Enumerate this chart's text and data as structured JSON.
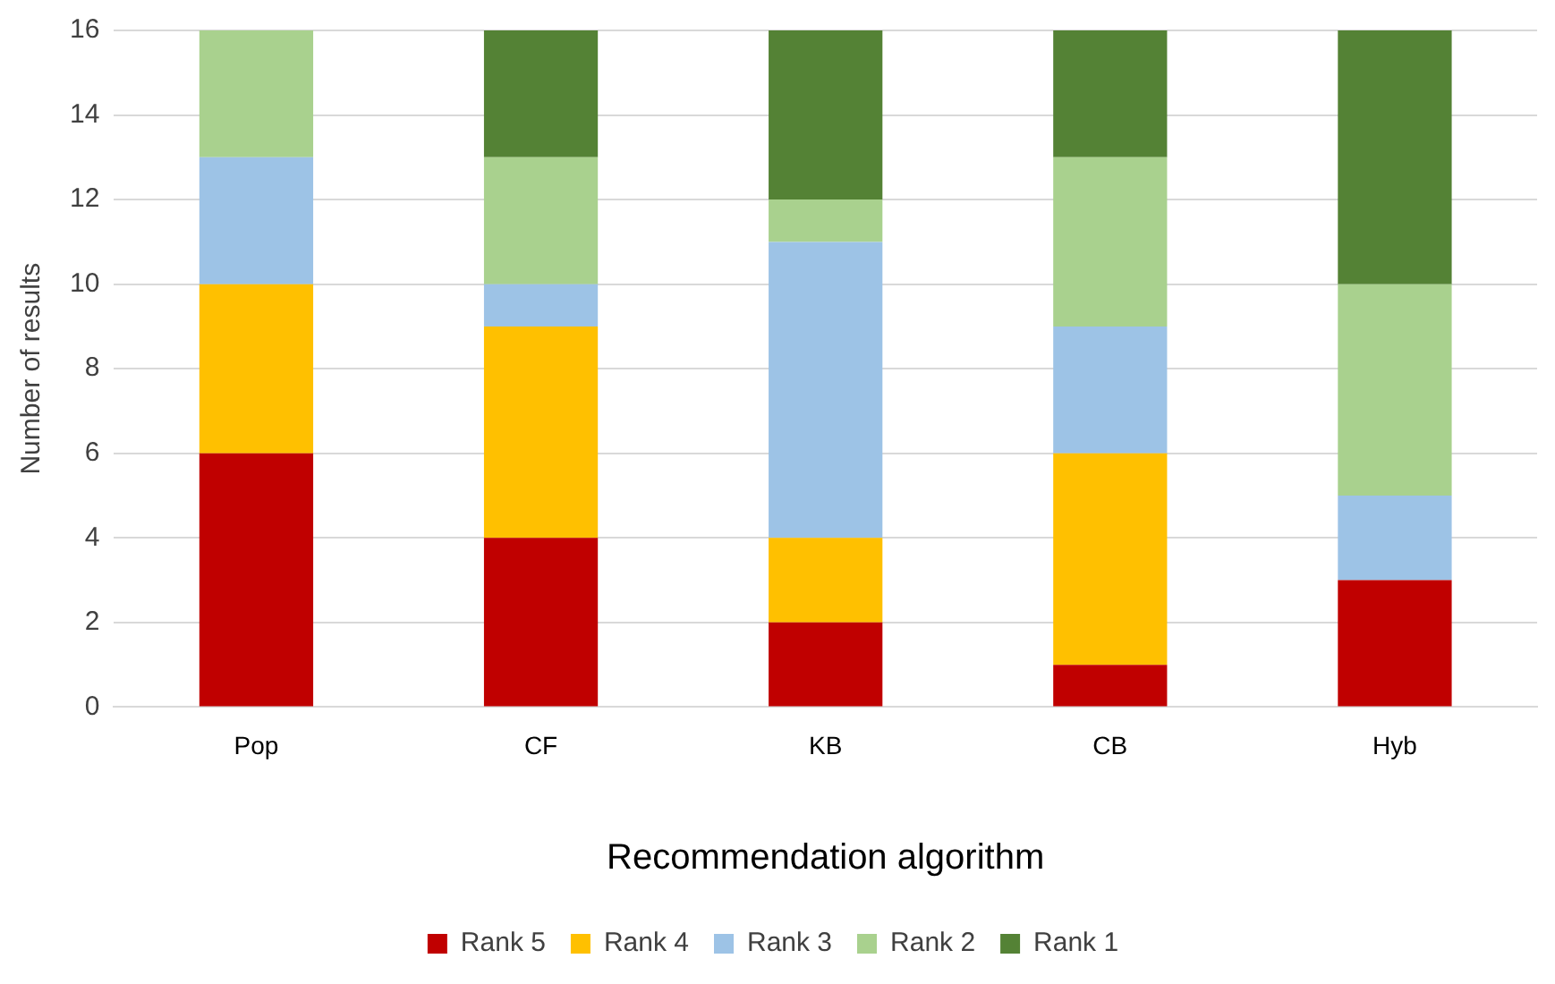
{
  "chart_data": {
    "type": "bar",
    "stacked": true,
    "xlabel": "Recommendation algorithm",
    "ylabel": "Number of results",
    "categories": [
      "Pop",
      "CF",
      "KB",
      "CB",
      "Hyb"
    ],
    "series": [
      {
        "name": "Rank 5",
        "color": "#c00000",
        "values": [
          6,
          4,
          2,
          1,
          3
        ]
      },
      {
        "name": "Rank 4",
        "color": "#ffc000",
        "values": [
          4,
          5,
          2,
          5,
          0
        ]
      },
      {
        "name": "Rank 3",
        "color": "#9dc3e6",
        "values": [
          3,
          1,
          7,
          3,
          2
        ]
      },
      {
        "name": "Rank 2",
        "color": "#a9d18e",
        "values": [
          3,
          3,
          1,
          4,
          5
        ]
      },
      {
        "name": "Rank 1",
        "color": "#548235",
        "values": [
          0,
          3,
          4,
          3,
          6
        ]
      }
    ],
    "ylim": [
      0,
      16
    ],
    "yticks": [
      0,
      2,
      4,
      6,
      8,
      10,
      12,
      14,
      16
    ],
    "grid": "y",
    "legend": "bottom"
  }
}
